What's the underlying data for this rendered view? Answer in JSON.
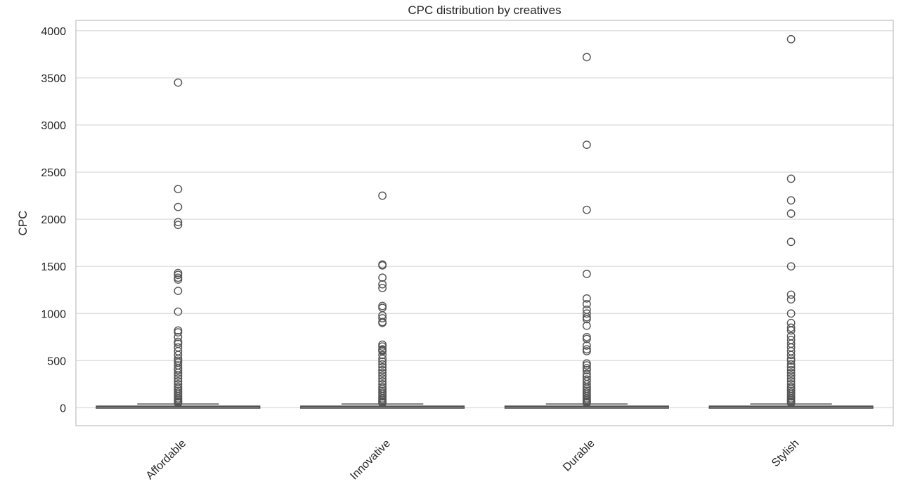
{
  "chart_data": {
    "type": "box",
    "title": "CPC distribution by creatives",
    "xlabel": "",
    "ylabel": "CPC",
    "ylim": [
      -190,
      4110
    ],
    "yticks": [
      0,
      500,
      1000,
      1500,
      2000,
      2500,
      3000,
      3500,
      4000
    ],
    "grid": true,
    "categories": [
      "Affordable",
      "Innovative",
      "Durable",
      "Stylish"
    ],
    "boxes": [
      {
        "q1": 2,
        "median": 10,
        "q3": 18,
        "whisker_low": 0,
        "whisker_high": 40
      },
      {
        "q1": 2,
        "median": 10,
        "q3": 18,
        "whisker_low": 0,
        "whisker_high": 40
      },
      {
        "q1": 2,
        "median": 10,
        "q3": 18,
        "whisker_low": 0,
        "whisker_high": 40
      },
      {
        "q1": 2,
        "median": 10,
        "q3": 18,
        "whisker_low": 0,
        "whisker_high": 40
      }
    ],
    "outliers": [
      [
        3450,
        2320,
        2130,
        1970,
        1940,
        1430,
        1410,
        1380,
        1360,
        1240,
        1020,
        820,
        800,
        750,
        700,
        680,
        640,
        600,
        560,
        520,
        500,
        480,
        450,
        420,
        400,
        370,
        340,
        310,
        280,
        250,
        220,
        200,
        180,
        160,
        140,
        120,
        100,
        85,
        70,
        60,
        50
      ],
      [
        2250,
        1520,
        1510,
        1380,
        1310,
        1270,
        1080,
        1060,
        980,
        950,
        910,
        900,
        670,
        650,
        620,
        610,
        600,
        560,
        520,
        490,
        460,
        430,
        400,
        370,
        340,
        310,
        280,
        250,
        220,
        200,
        180,
        160,
        140,
        120,
        100,
        85,
        70,
        60,
        50
      ],
      [
        3720,
        2790,
        2100,
        1420,
        1160,
        1100,
        1040,
        1000,
        960,
        940,
        870,
        750,
        730,
        660,
        620,
        600,
        470,
        450,
        420,
        400,
        360,
        330,
        300,
        280,
        250,
        220,
        200,
        180,
        160,
        140,
        120,
        100,
        85,
        70,
        60,
        50
      ],
      [
        3910,
        2430,
        2200,
        2060,
        1760,
        1500,
        1200,
        1150,
        1000,
        900,
        850,
        820,
        760,
        720,
        680,
        640,
        600,
        560,
        520,
        500,
        460,
        430,
        400,
        370,
        340,
        310,
        280,
        250,
        220,
        200,
        180,
        160,
        140,
        120,
        100,
        85,
        70,
        60,
        50
      ]
    ],
    "colors": {
      "box_fill": "#ffffff",
      "line": "#555555",
      "grid": "#dddddd",
      "frame": "#cccccc",
      "marker_edge": "#555555"
    }
  }
}
